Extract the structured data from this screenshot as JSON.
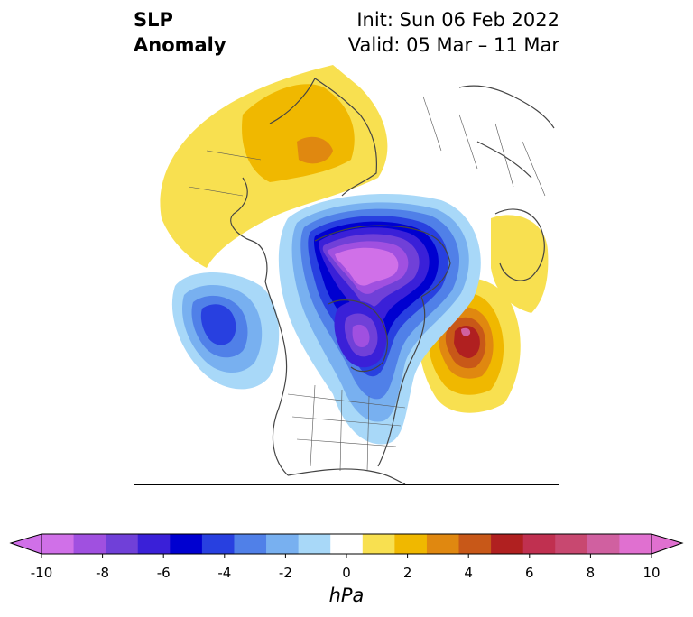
{
  "title": {
    "left_line1": "SLP",
    "left_line2": "Anomaly",
    "right_line1": "Init: Sun 06 Feb 2022",
    "right_line2": "Valid: 05 Mar – 11 Mar"
  },
  "map": {
    "projection": "north-polar stereographic",
    "region": "North America / Arctic / Greenland / Scandinavia",
    "features": [
      {
        "name": "negative-anomaly-arctic",
        "kind": "low",
        "min_hpa": -10
      },
      {
        "name": "negative-anomaly-hudson-bay",
        "kind": "low",
        "min_hpa": -9
      },
      {
        "name": "negative-anomaly-north-pacific",
        "kind": "low",
        "min_hpa": -6
      },
      {
        "name": "positive-anomaly-north-atlantic",
        "kind": "high",
        "max_hpa": 6
      },
      {
        "name": "positive-anomaly-eurasia",
        "kind": "high",
        "max_hpa": 3
      },
      {
        "name": "positive-anomaly-scandinavia",
        "kind": "high",
        "max_hpa": 2
      }
    ]
  },
  "colorbar": {
    "unit": "hPa",
    "levels": [
      -10,
      -9,
      -8,
      -7,
      -6,
      -5,
      -4,
      -3,
      -2,
      -1,
      1,
      2,
      3,
      4,
      5,
      6,
      7,
      8,
      9,
      10
    ],
    "colors": [
      "#d070e8",
      "#a050e0",
      "#7040d8",
      "#3a20d8",
      "#0000d0",
      "#2840e0",
      "#5080e8",
      "#78b0f0",
      "#a8d8f8",
      "#ffffff",
      "#f8e050",
      "#f0b800",
      "#e08810",
      "#c85818",
      "#b02020",
      "#c03050",
      "#c84870",
      "#d060a0",
      "#e070d0"
    ],
    "tick_labels": [
      "-10",
      "-8",
      "-6",
      "-4",
      "-2",
      "0",
      "2",
      "4",
      "6",
      "8",
      "10"
    ],
    "extend": "both"
  }
}
